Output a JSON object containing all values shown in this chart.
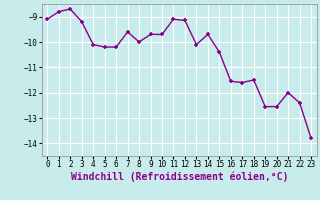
{
  "x": [
    0,
    1,
    2,
    3,
    4,
    5,
    6,
    7,
    8,
    9,
    10,
    11,
    12,
    13,
    14,
    15,
    16,
    17,
    18,
    19,
    20,
    21,
    22,
    23
  ],
  "y": [
    -9.1,
    -8.8,
    -8.7,
    -9.2,
    -10.1,
    -10.2,
    -10.2,
    -9.6,
    -10.0,
    -9.7,
    -9.7,
    -9.1,
    -9.15,
    -10.1,
    -9.7,
    -10.4,
    -11.55,
    -11.6,
    -11.5,
    -12.55,
    -12.55,
    -12.0,
    -12.4,
    -13.8
  ],
  "line_color": "#8B008B",
  "marker_color": "#8B008B",
  "background_color": "#c8ecec",
  "grid_color": "#ffffff",
  "xlabel": "Windchill (Refroidissement éolien,°C)",
  "xlabel_color": "#8B008B",
  "ylim": [
    -14.5,
    -8.5
  ],
  "xlim": [
    -0.5,
    23.5
  ],
  "yticks": [
    -9,
    -10,
    -11,
    -12,
    -13,
    -14
  ],
  "xtick_labels": [
    "0",
    "1",
    "2",
    "3",
    "4",
    "5",
    "6",
    "7",
    "8",
    "9",
    "10",
    "11",
    "12",
    "13",
    "14",
    "15",
    "16",
    "17",
    "18",
    "19",
    "20",
    "21",
    "22",
    "23"
  ],
  "font_family": "monospace",
  "tick_fontsize": 5.5,
  "xlabel_fontsize": 7.0
}
